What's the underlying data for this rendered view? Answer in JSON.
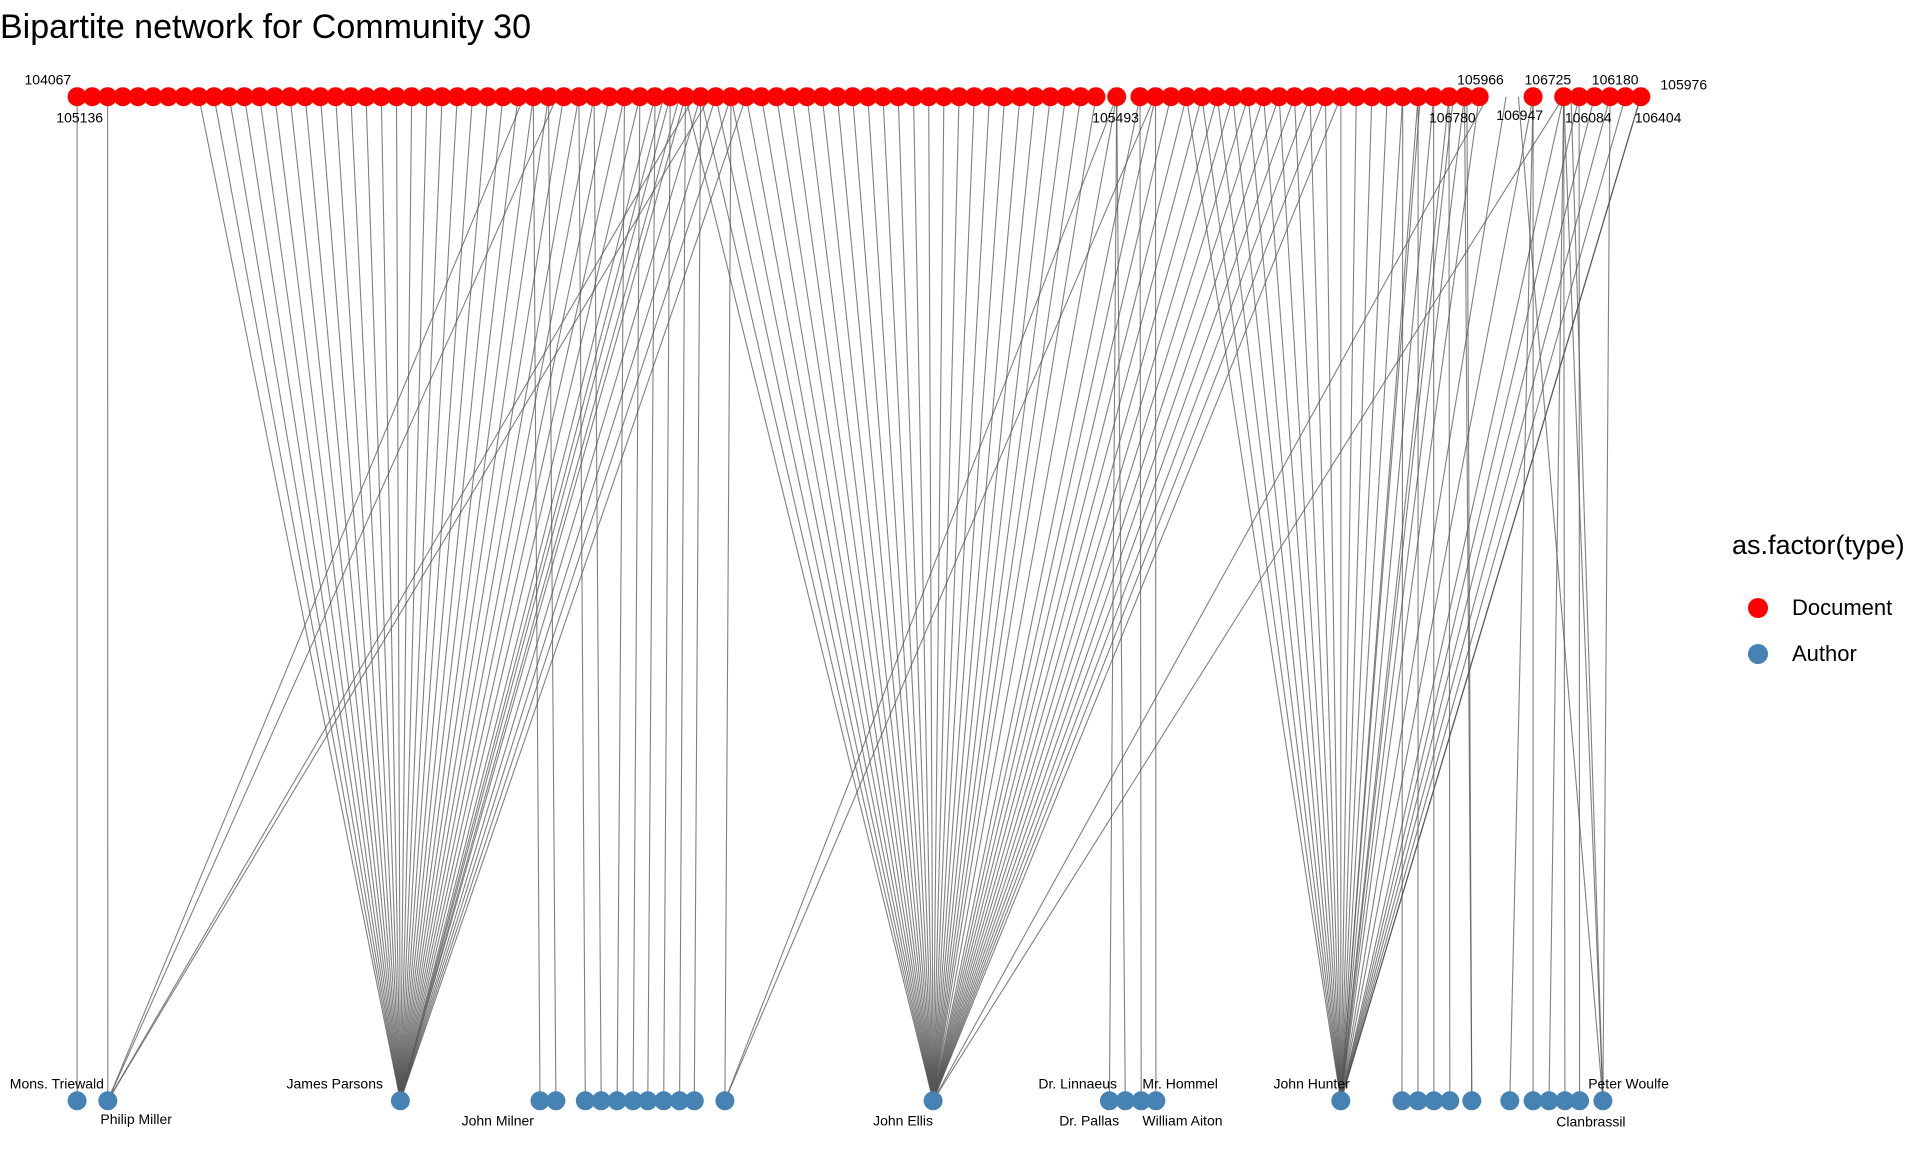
{
  "chart_data": {
    "type": "network",
    "title": "Bipartite network for Community 30",
    "legend": {
      "title": "as.factor(type)",
      "placement": "right",
      "items": [
        {
          "label": "Document",
          "color": "#FF0000"
        },
        {
          "label": "Author",
          "color": "#4682B4"
        }
      ]
    },
    "colors": {
      "document": "#FF0000",
      "author": "#4682B4",
      "edge": "#555555"
    },
    "document_node_count": 103,
    "document_labels": [
      "104067",
      "105136",
      "105493",
      "105966",
      "106780",
      "106725",
      "106947",
      "106180",
      "106084",
      "105976",
      "106404"
    ],
    "author_labels": [
      "Mons. Triewald",
      "Philip Miller",
      "James Parsons",
      "John Milner",
      "John Ellis",
      "Dr. Linnaeus",
      "Dr. Pallas",
      "Mr. Hommel",
      "William Aiton",
      "John Hunter",
      "Peter Woulfe",
      "Clanbrassil"
    ],
    "author_node_count": 33
  }
}
